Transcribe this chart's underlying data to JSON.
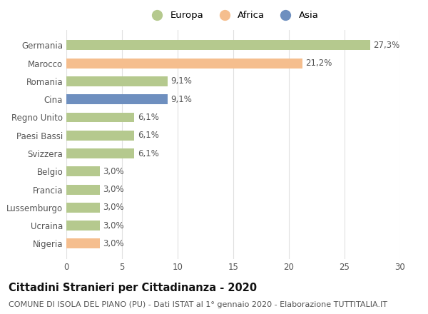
{
  "countries": [
    "Germania",
    "Marocco",
    "Romania",
    "Cina",
    "Regno Unito",
    "Paesi Bassi",
    "Svizzera",
    "Belgio",
    "Francia",
    "Lussemburgo",
    "Ucraina",
    "Nigeria"
  ],
  "values": [
    27.3,
    21.2,
    9.1,
    9.1,
    6.1,
    6.1,
    6.1,
    3.0,
    3.0,
    3.0,
    3.0,
    3.0
  ],
  "labels": [
    "27,3%",
    "21,2%",
    "9,1%",
    "9,1%",
    "6,1%",
    "6,1%",
    "6,1%",
    "3,0%",
    "3,0%",
    "3,0%",
    "3,0%",
    "3,0%"
  ],
  "continents": [
    "Europa",
    "Africa",
    "Europa",
    "Asia",
    "Europa",
    "Europa",
    "Europa",
    "Europa",
    "Europa",
    "Europa",
    "Europa",
    "Africa"
  ],
  "colors": {
    "Europa": "#b5c98e",
    "Africa": "#f5be8e",
    "Asia": "#6e8fbf"
  },
  "legend_order": [
    "Europa",
    "Africa",
    "Asia"
  ],
  "xlim": [
    0,
    30
  ],
  "xticks": [
    0,
    5,
    10,
    15,
    20,
    25,
    30
  ],
  "title": "Cittadini Stranieri per Cittadinanza - 2020",
  "subtitle": "COMUNE DI ISOLA DEL PIANO (PU) - Dati ISTAT al 1° gennaio 2020 - Elaborazione TUTTITALIA.IT",
  "background_color": "#ffffff",
  "bar_height": 0.55,
  "label_fontsize": 8.5,
  "title_fontsize": 10.5,
  "subtitle_fontsize": 8,
  "tick_fontsize": 8.5,
  "legend_fontsize": 9.5
}
